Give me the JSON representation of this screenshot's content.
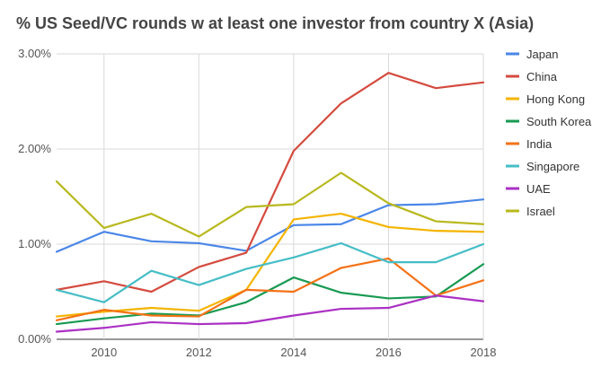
{
  "chart_data": {
    "type": "line",
    "title": "% US Seed/VC rounds w at least one investor from country X (Asia)",
    "xlabel": "",
    "ylabel": "",
    "x": [
      2009,
      2010,
      2011,
      2012,
      2013,
      2014,
      2015,
      2016,
      2017,
      2018
    ],
    "x_tick_labels": [
      "2010",
      "2012",
      "2014",
      "2016",
      "2018"
    ],
    "x_tick_values": [
      2010,
      2012,
      2014,
      2016,
      2018
    ],
    "xlim": [
      2009,
      2018
    ],
    "ylim": [
      0,
      3
    ],
    "y_tick_values": [
      0,
      1,
      2,
      3
    ],
    "y_tick_labels": [
      "0.00%",
      "1.00%",
      "2.00%",
      "3.00%"
    ],
    "grid": true,
    "legend_position": "right",
    "series": [
      {
        "name": "Japan",
        "color": "#4a86e8",
        "values": [
          0.92,
          1.13,
          1.03,
          1.01,
          0.93,
          1.2,
          1.21,
          1.41,
          1.42,
          1.47
        ]
      },
      {
        "name": "China",
        "color": "#d44b3f",
        "values": [
          0.52,
          0.61,
          0.5,
          0.76,
          0.91,
          1.98,
          2.48,
          2.8,
          2.64,
          2.7
        ]
      },
      {
        "name": "Hong Kong",
        "color": "#f4b400",
        "values": [
          0.24,
          0.29,
          0.33,
          0.3,
          0.52,
          1.26,
          1.32,
          1.18,
          1.14,
          1.13
        ]
      },
      {
        "name": "South Korea",
        "color": "#189a52",
        "values": [
          0.16,
          0.22,
          0.27,
          0.25,
          0.39,
          0.65,
          0.49,
          0.43,
          0.45,
          0.79
        ]
      },
      {
        "name": "India",
        "color": "#f47216",
        "values": [
          0.2,
          0.31,
          0.25,
          0.24,
          0.52,
          0.5,
          0.75,
          0.85,
          0.46,
          0.62
        ]
      },
      {
        "name": "Singapore",
        "color": "#46bdc6",
        "values": [
          0.52,
          0.39,
          0.72,
          0.57,
          0.74,
          0.86,
          1.01,
          0.81,
          0.81,
          1.0
        ]
      },
      {
        "name": "UAE",
        "color": "#ab30c4",
        "values": [
          0.08,
          0.12,
          0.18,
          0.16,
          0.17,
          0.25,
          0.32,
          0.33,
          0.46,
          0.4
        ]
      },
      {
        "name": "Israel",
        "color": "#b8b81e",
        "values": [
          1.66,
          1.17,
          1.32,
          1.08,
          1.39,
          1.42,
          1.75,
          1.43,
          1.24,
          1.21
        ]
      }
    ]
  }
}
